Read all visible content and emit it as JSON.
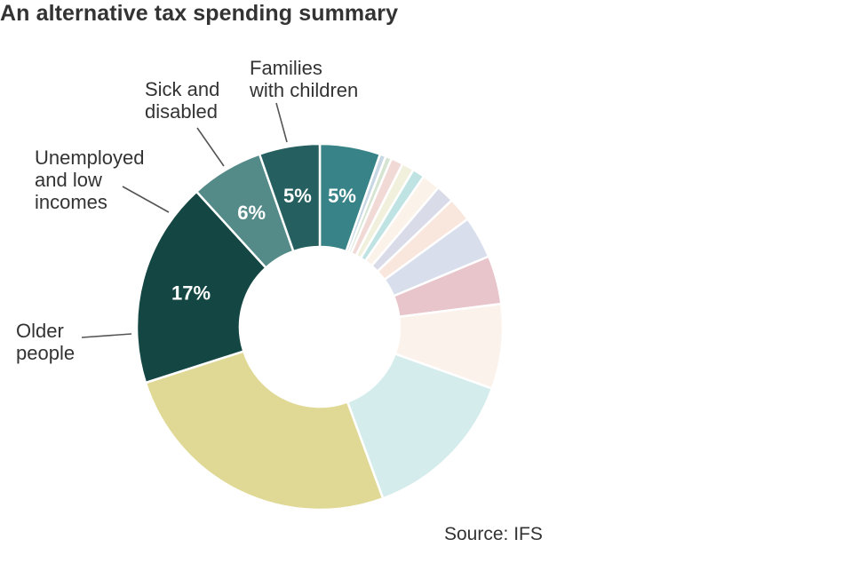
{
  "title": "An alternative tax spending summary",
  "source": "Source: IFS",
  "chart_data": {
    "type": "pie",
    "title": "An alternative tax spending summary",
    "style": "donut",
    "slices": [
      {
        "label": "Families with children",
        "value": 5,
        "value_label": "5%",
        "color": "#388387"
      },
      {
        "label": "",
        "value": 0.5,
        "color": "#c8d7e4"
      },
      {
        "label": "",
        "value": 0.5,
        "color": "#d6e4d2"
      },
      {
        "label": "",
        "value": 1,
        "color": "#f1d9d6"
      },
      {
        "label": "",
        "value": 1,
        "color": "#f1f0dc"
      },
      {
        "label": "",
        "value": 1,
        "color": "#bfe3e3"
      },
      {
        "label": "",
        "value": 1.5,
        "color": "#fbf2ea"
      },
      {
        "label": "",
        "value": 1.5,
        "color": "#d9dbe8"
      },
      {
        "label": "",
        "value": 2,
        "color": "#f9e6dd"
      },
      {
        "label": "",
        "value": 3.5,
        "color": "#d8deec"
      },
      {
        "label": "",
        "value": 4,
        "color": "#e8c4cb"
      },
      {
        "label": "",
        "value": 7,
        "color": "#fbf2ec"
      },
      {
        "label": "",
        "value": 13,
        "color": "#d4eceb"
      },
      {
        "label": "",
        "value": 24,
        "color": "#e0d996"
      },
      {
        "label": "Older people",
        "value": 17,
        "value_label": "17%",
        "color": "#144743"
      },
      {
        "label": "Unemployed and low incomes",
        "value": 6,
        "value_label": "6%",
        "color": "#548b88"
      },
      {
        "label": "Sick and disabled",
        "value": 5,
        "value_label": "5%",
        "color": "#265f5f"
      }
    ],
    "labels": [
      {
        "slice": 0,
        "lines": [
          "Families",
          "with children"
        ]
      },
      {
        "slice": 16,
        "lines": [
          "Sick and",
          "disabled"
        ]
      },
      {
        "slice": 15,
        "lines": [
          "Unemployed",
          "and low",
          "incomes"
        ]
      },
      {
        "slice": 14,
        "lines": [
          "Older",
          "people"
        ]
      }
    ],
    "legend": "none",
    "source": "Source: IFS"
  }
}
